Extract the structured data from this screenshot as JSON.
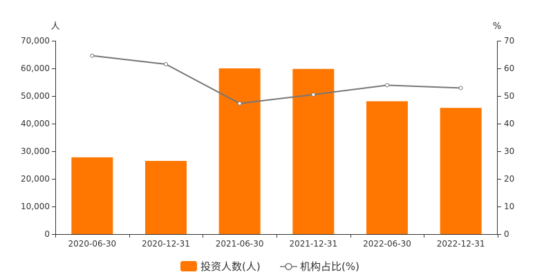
{
  "chart_data": {
    "type": "bar",
    "categories": [
      "2020-06-30",
      "2020-12-31",
      "2021-06-30",
      "2021-12-31",
      "2022-06-30",
      "2022-12-31"
    ],
    "series": [
      {
        "name": "投资人数(人)",
        "type": "bar",
        "axis": "left",
        "color": "#ff7700",
        "values": [
          27800,
          26500,
          60000,
          59800,
          48100,
          45700
        ]
      },
      {
        "name": "机构占比(%)",
        "type": "line",
        "axis": "right",
        "color": "#777777",
        "values": [
          64.6,
          61.5,
          47.3,
          50.5,
          53.9,
          52.9
        ]
      }
    ],
    "y_left": {
      "unit": "人",
      "min": 0,
      "max": 70000,
      "ticks": [
        "0",
        "10,000",
        "20,000",
        "30,000",
        "40,000",
        "50,000",
        "60,000",
        "70,000"
      ]
    },
    "y_right": {
      "unit": "%",
      "min": 0,
      "max": 70,
      "ticks": [
        "0",
        "10",
        "20",
        "30",
        "40",
        "50",
        "60",
        "70"
      ]
    },
    "legend": {
      "position": "bottom-center"
    },
    "grid": false
  }
}
